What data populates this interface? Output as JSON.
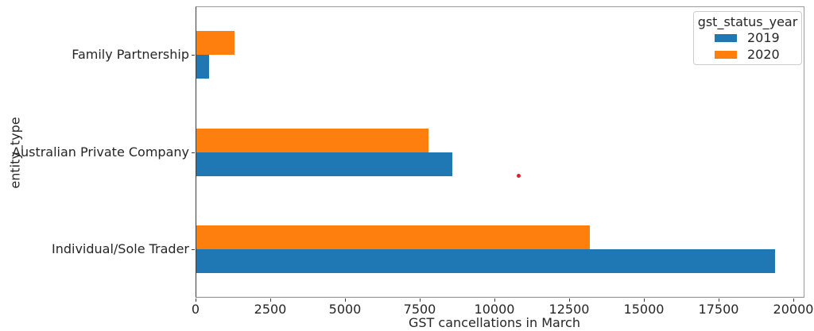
{
  "figure": {
    "background": "#ffffff",
    "text_color": "#262626"
  },
  "chart_data": {
    "type": "bar",
    "orientation": "horizontal",
    "title": "",
    "xlabel": "GST cancellations in March",
    "ylabel": "entity_type",
    "categories": [
      "Family Partnership",
      "Australian Private Company",
      "Individual/Sole Trader"
    ],
    "series": [
      {
        "name": "2019",
        "color": "#1f77b4",
        "values": [
          450,
          8600,
          19400
        ]
      },
      {
        "name": "2020",
        "color": "#ff7f0e",
        "values": [
          1300,
          7800,
          13200
        ]
      }
    ],
    "x_ticks": [
      0,
      2500,
      5000,
      7500,
      10000,
      12500,
      15000,
      17500,
      20000
    ],
    "xlim": [
      0,
      20000
    ],
    "grid": false,
    "legend": {
      "title": "gst_status_year",
      "position": "upper-right"
    },
    "annotation_point": {
      "x": 10800,
      "category": "Australian Private Company",
      "color": "#d62728"
    }
  }
}
